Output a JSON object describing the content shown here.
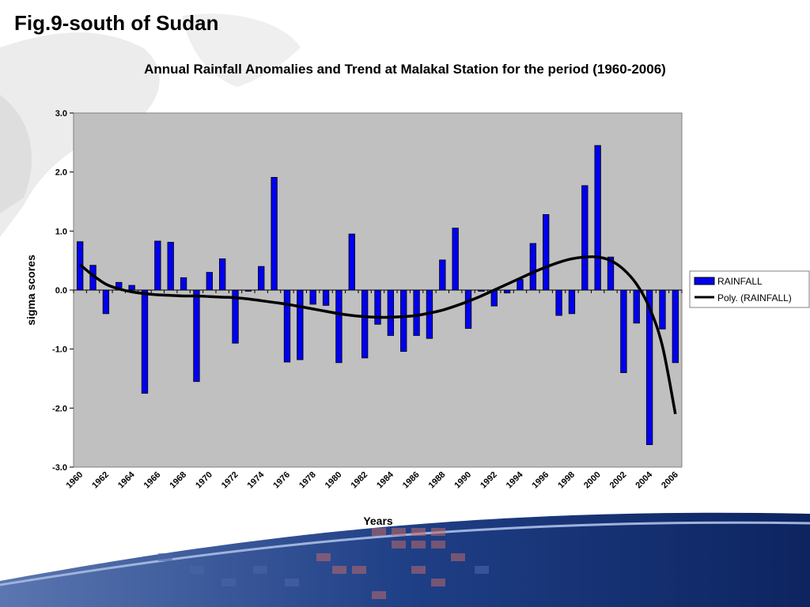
{
  "slide": {
    "title": "Fig.9-south of Sudan"
  },
  "chart_data": {
    "type": "bar",
    "title": "Annual Rainfall Anomalies and Trend at Malakal Station for the period (1960-2006)",
    "xlabel": "Years",
    "ylabel": "sigma scores",
    "ylim": [
      -3.0,
      3.0
    ],
    "y_ticks": [
      "3.0",
      "2.0",
      "1.0",
      "0.0",
      "-1.0",
      "-2.0",
      "-3.0"
    ],
    "y_tick_values": [
      3,
      2,
      1,
      0,
      -1,
      -2,
      -3
    ],
    "x_tick_labels": [
      "1960",
      "1962",
      "1964",
      "1966",
      "1968",
      "1970",
      "1972",
      "1974",
      "1976",
      "1978",
      "1980",
      "1982",
      "1984",
      "1986",
      "1988",
      "1990",
      "1992",
      "1994",
      "1996",
      "1998",
      "2000",
      "2002",
      "2004",
      "2006"
    ],
    "categories": [
      1960,
      1961,
      1962,
      1963,
      1964,
      1965,
      1966,
      1967,
      1968,
      1969,
      1970,
      1971,
      1972,
      1973,
      1974,
      1975,
      1976,
      1977,
      1978,
      1979,
      1980,
      1981,
      1982,
      1983,
      1984,
      1985,
      1986,
      1987,
      1988,
      1989,
      1990,
      1991,
      1992,
      1993,
      1994,
      1995,
      1996,
      1997,
      1998,
      1999,
      2000,
      2001,
      2002,
      2003,
      2004,
      2005,
      2006
    ],
    "series": [
      {
        "name": "RAINFALL",
        "kind": "bar",
        "color": "#0000ee",
        "values": [
          0.82,
          0.42,
          -0.4,
          0.13,
          0.08,
          -1.75,
          0.83,
          0.81,
          0.21,
          -1.55,
          0.3,
          0.53,
          -0.9,
          -0.02,
          0.4,
          1.91,
          -1.22,
          -1.18,
          -0.24,
          -0.26,
          -1.23,
          0.95,
          -1.15,
          -0.58,
          -0.77,
          -1.04,
          -0.77,
          -0.82,
          0.51,
          1.05,
          -0.65,
          -0.02,
          -0.27,
          -0.05,
          0.18,
          0.79,
          1.28,
          -0.43,
          -0.4,
          1.77,
          2.45,
          0.56,
          -1.4,
          -0.56,
          -2.62,
          -0.66,
          -1.23
        ]
      },
      {
        "name": "Poly. (RAINFALL)",
        "kind": "line",
        "color": "#000000",
        "values": [
          0.43,
          0.25,
          0.1,
          0.02,
          -0.03,
          -0.06,
          -0.08,
          -0.09,
          -0.1,
          -0.1,
          -0.11,
          -0.12,
          -0.13,
          -0.15,
          -0.18,
          -0.21,
          -0.24,
          -0.28,
          -0.32,
          -0.36,
          -0.4,
          -0.43,
          -0.45,
          -0.46,
          -0.46,
          -0.45,
          -0.43,
          -0.39,
          -0.34,
          -0.27,
          -0.19,
          -0.1,
          0.0,
          0.1,
          0.2,
          0.3,
          0.39,
          0.47,
          0.53,
          0.56,
          0.56,
          0.5,
          0.35,
          0.1,
          -0.3,
          -0.95,
          -2.1
        ]
      }
    ],
    "legend_position": "right",
    "plot_background": "#c0c0c0"
  }
}
